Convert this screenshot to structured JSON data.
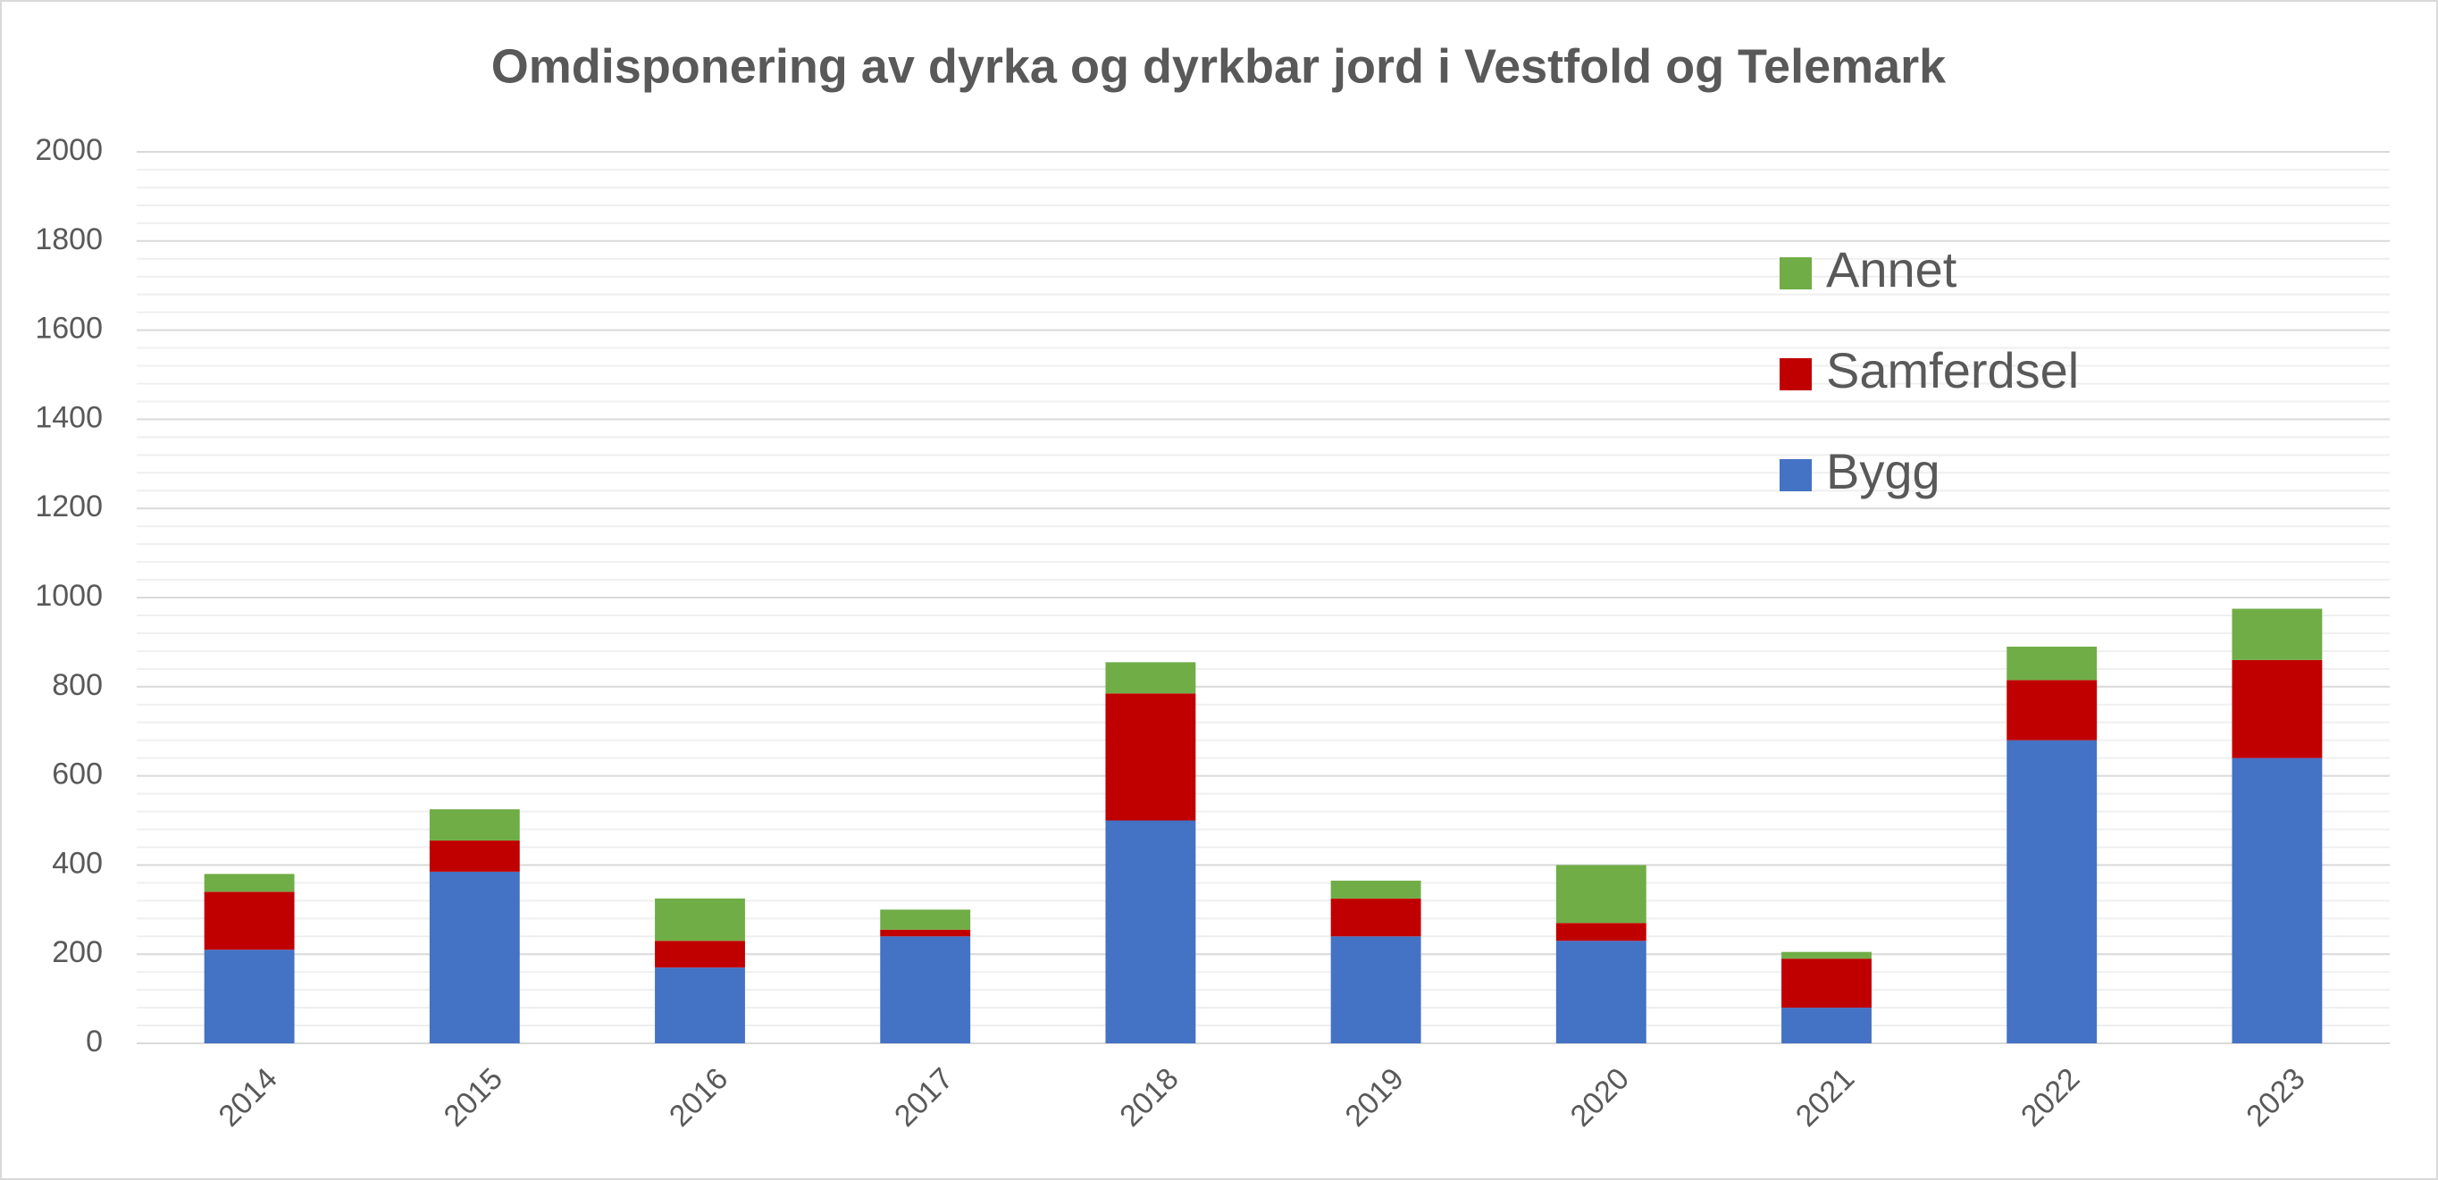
{
  "chart_data": {
    "type": "stacked_bar",
    "title": "Omdisponering av dyrka og dyrkbar jord i Vestfold og Telemark",
    "categories": [
      "2014",
      "2015",
      "2016",
      "2017",
      "2018",
      "2019",
      "2020",
      "2021",
      "2022",
      "2023"
    ],
    "series": [
      {
        "name": "Bygg",
        "color": "#4472c4",
        "values": [
          210,
          385,
          170,
          240,
          500,
          240,
          230,
          80,
          680,
          640
        ]
      },
      {
        "name": "Samferdsel",
        "color": "#c00000",
        "values": [
          130,
          70,
          60,
          15,
          285,
          85,
          40,
          110,
          135,
          220
        ]
      },
      {
        "name": "Annet",
        "color": "#70ad47",
        "values": [
          40,
          70,
          95,
          45,
          70,
          40,
          130,
          15,
          75,
          115
        ]
      }
    ],
    "ylim": [
      0,
      2000
    ],
    "yticks": [
      0,
      200,
      400,
      600,
      800,
      1000,
      1200,
      1400,
      1600,
      1800,
      2000
    ],
    "grid": true,
    "minor_grid": true,
    "legend": "upper right"
  }
}
